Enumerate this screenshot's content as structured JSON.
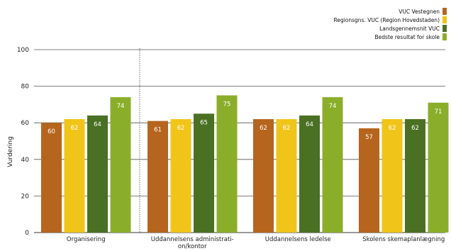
{
  "chart_data": {
    "type": "bar",
    "title": "",
    "xlabel": "",
    "ylabel": "Vurdering",
    "ylim": [
      0,
      100
    ],
    "yticks": [
      0,
      20,
      40,
      60,
      80,
      100
    ],
    "grid": true,
    "legend_position": "top-right",
    "categories": [
      [
        "Organisering"
      ],
      [
        "Uddannelsens administrati-",
        "on/kontor"
      ],
      [
        "Uddannelsens ledelse"
      ],
      [
        "Skolens skemaplanlægning"
      ]
    ],
    "series": [
      {
        "name": "VUC Vestegnen",
        "color": "#b5651d",
        "values": [
          60,
          61,
          62,
          57
        ]
      },
      {
        "name": "Regionsgns. VUC (Region Hovedstaden)",
        "color": "#f0c419",
        "values": [
          62,
          62,
          62,
          62
        ]
      },
      {
        "name": "Landsgennemsnit VUC",
        "color": "#4a7023",
        "values": [
          64,
          65,
          64,
          62
        ]
      },
      {
        "name": "Bedste resultat for skole",
        "color": "#8aae2a",
        "values": [
          74,
          75,
          74,
          71
        ]
      }
    ]
  }
}
